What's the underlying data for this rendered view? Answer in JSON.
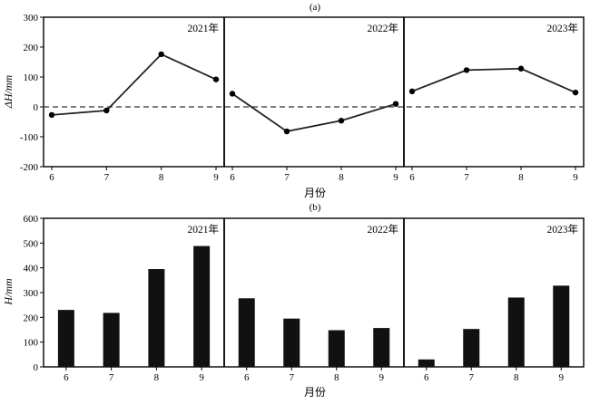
{
  "chart_data": [
    {
      "type": "line",
      "panel_label": "(a)",
      "ylabel": "ΔH/mm",
      "xlabel": "月份",
      "ylim": [
        -200,
        300
      ],
      "yticks": [
        "-200",
        "-100",
        "0",
        "100",
        "200",
        "300"
      ],
      "reference_line": 0,
      "categories": [
        "6",
        "7",
        "8",
        "9"
      ],
      "series": [
        {
          "name": "2021年",
          "values": [
            -27,
            -12,
            176,
            92
          ]
        },
        {
          "name": "2022年",
          "values": [
            44,
            -82,
            -46,
            10
          ]
        },
        {
          "name": "2023年",
          "values": [
            52,
            123,
            128,
            48
          ]
        }
      ],
      "grid": false
    },
    {
      "type": "bar",
      "panel_label": "(b)",
      "ylabel": "H/mm",
      "xlabel": "月份",
      "ylim": [
        0,
        600
      ],
      "yticks": [
        "0",
        "100",
        "200",
        "300",
        "400",
        "500",
        "600"
      ],
      "categories": [
        "6",
        "7",
        "8",
        "9"
      ],
      "series": [
        {
          "name": "2021年",
          "values": [
            230,
            218,
            395,
            488
          ]
        },
        {
          "name": "2022年",
          "values": [
            277,
            195,
            148,
            157
          ]
        },
        {
          "name": "2023年",
          "values": [
            30,
            153,
            280,
            328
          ]
        }
      ],
      "grid": false
    }
  ],
  "colors": {
    "line": "#222222",
    "bar": "#111111",
    "dash": "#555555"
  }
}
